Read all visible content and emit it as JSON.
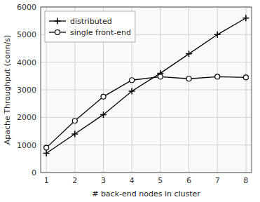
{
  "chart_data": {
    "type": "line",
    "x": [
      1,
      2,
      3,
      4,
      5,
      6,
      7,
      8
    ],
    "series": [
      {
        "name": "distributed",
        "color": "#000000",
        "marker": "plus",
        "values": [
          700,
          1400,
          2100,
          2950,
          3600,
          4300,
          5000,
          5600
        ]
      },
      {
        "name": "single front-end",
        "color": "#000000",
        "marker": "circle",
        "values": [
          900,
          1875,
          2750,
          3350,
          3475,
          3400,
          3475,
          3450
        ]
      }
    ],
    "xlabel": "# back-end nodes in cluster",
    "ylabel": "Apache Throughput (conn/s)",
    "xlim": [
      0.8,
      8.2
    ],
    "ylim": [
      0,
      6000
    ],
    "xticks": [
      1,
      2,
      3,
      4,
      5,
      6,
      7,
      8
    ],
    "yticks": [
      0,
      1000,
      2000,
      3000,
      4000,
      5000,
      6000
    ],
    "grid": true,
    "legend": "upper left"
  }
}
